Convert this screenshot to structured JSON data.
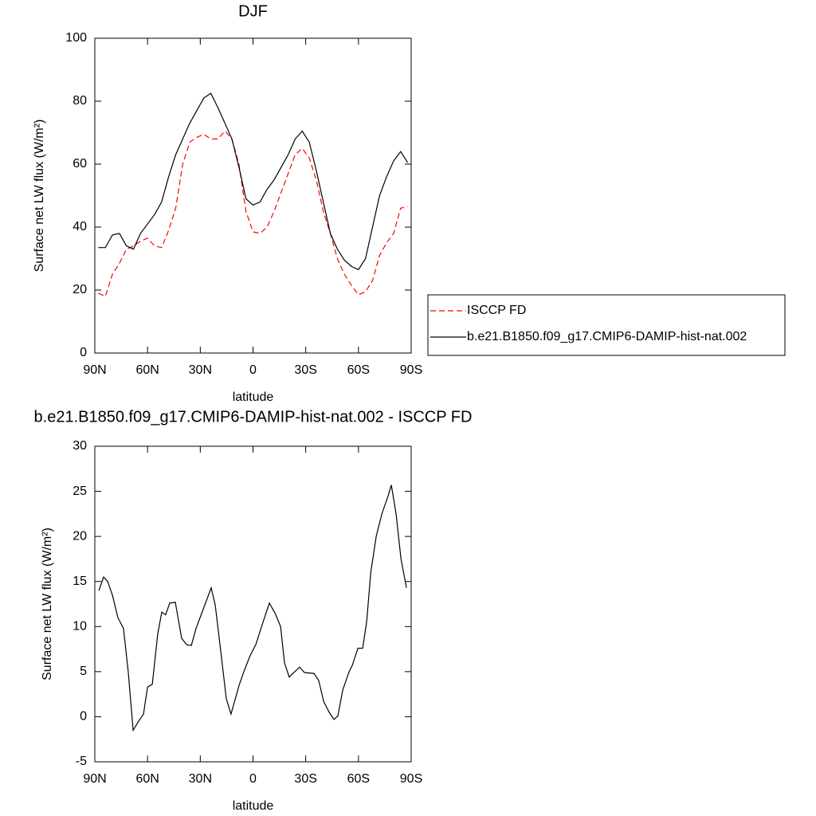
{
  "chart_data": [
    {
      "type": "line",
      "title": "DJF",
      "xlabel": "latitude",
      "ylabel": "Surface net LW flux (W/m²)",
      "x": [
        88,
        84,
        80,
        76,
        72,
        68,
        64,
        60,
        56,
        52,
        48,
        44,
        40,
        36,
        32,
        28,
        24,
        20,
        16,
        12,
        8,
        4,
        0,
        -4,
        -8,
        -12,
        -16,
        -20,
        -24,
        -28,
        -32,
        -36,
        -40,
        -44,
        -48,
        -52,
        -56,
        -60,
        -64,
        -68,
        -72,
        -76,
        -80,
        -84,
        -88
      ],
      "series": [
        {
          "name": "ISCCP FD",
          "color": "#ff0000",
          "linestyle": "dashed",
          "values": [
            19,
            18,
            25,
            28.5,
            33,
            34,
            35.5,
            36.5,
            34,
            33.5,
            39,
            46,
            60,
            67,
            68.5,
            69.5,
            68,
            68,
            70.5,
            68,
            60,
            45,
            38.5,
            38,
            40,
            45,
            51,
            57,
            63,
            65,
            62,
            55,
            45,
            38,
            30,
            25,
            21.5,
            18.5,
            19.5,
            23,
            31,
            35,
            38,
            46,
            46.5
          ]
        },
        {
          "name": "b.e21.B1850.f09_g17.CMIP6-DAMIP-hist-nat.002",
          "color": "#000000",
          "linestyle": "solid",
          "values": [
            33.5,
            33.5,
            37.5,
            38,
            34,
            33,
            38,
            41,
            44,
            48,
            56,
            63,
            68,
            73,
            77,
            81,
            82.5,
            78,
            73,
            68,
            59,
            49,
            47,
            48,
            52,
            55,
            59,
            63,
            68,
            70.5,
            67,
            58,
            48,
            38,
            33,
            29.5,
            27.5,
            26.5,
            30,
            40,
            50,
            56,
            61,
            64,
            60.5
          ]
        }
      ],
      "xlim": [
        90,
        -90
      ],
      "xticks": [
        {
          "value": 90,
          "label": "90N"
        },
        {
          "value": 60,
          "label": "60N"
        },
        {
          "value": 30,
          "label": "30N"
        },
        0,
        {
          "value": -30,
          "label": "30S"
        },
        {
          "value": -60,
          "label": "60S"
        },
        {
          "value": -90,
          "label": "90S"
        }
      ],
      "ylim": [
        0,
        100
      ],
      "yticks": [
        0,
        20,
        40,
        60,
        80,
        100
      ],
      "legend": "outside-right"
    },
    {
      "type": "line",
      "title": "b.e21.B1850.f09_g17.CMIP6-DAMIP-hist-nat.002 - ISCCP FD",
      "xlabel": "latitude",
      "ylabel": "Surface net LW flux (W/m²)",
      "x": [
        87.7,
        85.0,
        82.7,
        80.0,
        76.9,
        73.7,
        71.0,
        68.2,
        65.1,
        62.3,
        60.0,
        57.3,
        54.2,
        51.9,
        49.7,
        47.4,
        44.2,
        40.6,
        37.8,
        35.1,
        32.4,
        23.8,
        21.5,
        18.8,
        15.2,
        12.5,
        7.9,
        5.2,
        1.6,
        -1.6,
        -5.7,
        -9.3,
        -12.5,
        -15.7,
        -17.9,
        -20.6,
        -23.8,
        -26.5,
        -29.3,
        -34.7,
        -37.4,
        -40.2,
        -43.3,
        -46.1,
        -48.3,
        -51.1,
        -54.7,
        -56.5,
        -59.7,
        -62.4,
        -64.7,
        -67.0,
        -70.1,
        -73.3,
        -76.9,
        -78.7,
        -81.4,
        -84.2,
        -87.3
      ],
      "series": [
        {
          "color": "#000000",
          "linestyle": "solid",
          "values": [
            14,
            15.5,
            15,
            13.5,
            11,
            9.8,
            5,
            -1.5,
            -0.5,
            0.3,
            3.3,
            3.6,
            9.2,
            11.6,
            11.3,
            12.6,
            12.7,
            8.7,
            8,
            7.9,
            9.8,
            14.3,
            12.4,
            8,
            2,
            0.3,
            3.5,
            5,
            6.8,
            8,
            10.5,
            12.6,
            11.5,
            10,
            6,
            4.4,
            5,
            5.5,
            4.9,
            4.8,
            4,
            1.7,
            0.5,
            -0.3,
            0.1,
            3,
            5,
            5.7,
            7.6,
            7.6,
            10.6,
            16,
            20,
            22.5,
            24.5,
            25.7,
            22.5,
            17.5,
            14.3
          ]
        }
      ],
      "xlim": [
        90,
        -90
      ],
      "xticks": [
        {
          "value": 90,
          "label": "90N"
        },
        {
          "value": 60,
          "label": "60N"
        },
        {
          "value": 30,
          "label": "30N"
        },
        0,
        {
          "value": -30,
          "label": "30S"
        },
        {
          "value": -60,
          "label": "60S"
        },
        {
          "value": -90,
          "label": "90S"
        }
      ],
      "ylim": [
        -5,
        30
      ],
      "yticks": [
        -5,
        0,
        5,
        10,
        15,
        20,
        25,
        30
      ]
    }
  ]
}
